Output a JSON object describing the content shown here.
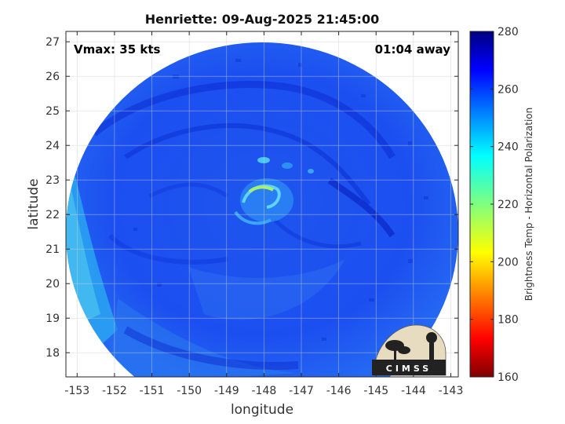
{
  "chart_data": {
    "type": "heatmap",
    "title": "Henriette: 09-Aug-2025 21:45:00",
    "xlabel": "longitude",
    "ylabel": "latitude",
    "xlim": [
      -153.3,
      -142.8
    ],
    "ylim": [
      17.3,
      27.3
    ],
    "xticks": [
      -153,
      -152,
      -151,
      -150,
      -149,
      -148,
      -147,
      -146,
      -145,
      -144,
      -143
    ],
    "yticks": [
      18,
      19,
      20,
      21,
      22,
      23,
      24,
      25,
      26,
      27
    ],
    "grid": true,
    "annotations": {
      "vmax": "Vmax: 35 kts",
      "time_offset": "01:04 away"
    },
    "storm_center": {
      "lon": -148.1,
      "lat": 22.6
    },
    "colorbar": {
      "label": "Brightness Temp - Horizontal Polarization",
      "range": [
        160,
        280
      ],
      "ticks": [
        160,
        180,
        200,
        220,
        240,
        260,
        280
      ],
      "colormap": "jet"
    },
    "logo": "CIMSS"
  },
  "colors": {
    "background_field": "#1a4ef0",
    "cold_band": "#0b2fd6",
    "warm_edge": "#29a7f0",
    "eye_wall": "#7fe07a"
  }
}
